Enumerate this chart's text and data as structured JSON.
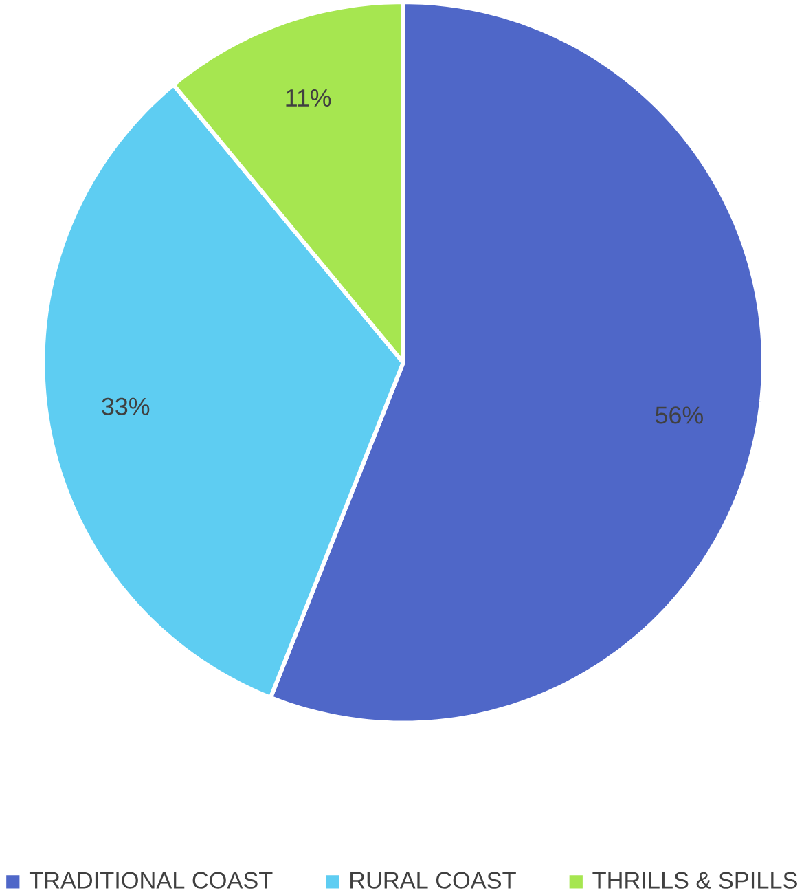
{
  "chart_data": {
    "type": "pie",
    "categories": [
      "TRADITIONAL COAST",
      "RURAL COAST",
      "THRILLS & SPILLS"
    ],
    "values": [
      56,
      33,
      11
    ],
    "value_labels": [
      "56%",
      "33%",
      "11%"
    ],
    "colors": [
      "#4f67c8",
      "#5ecdf2",
      "#a6e650"
    ],
    "legend": "bottom"
  }
}
